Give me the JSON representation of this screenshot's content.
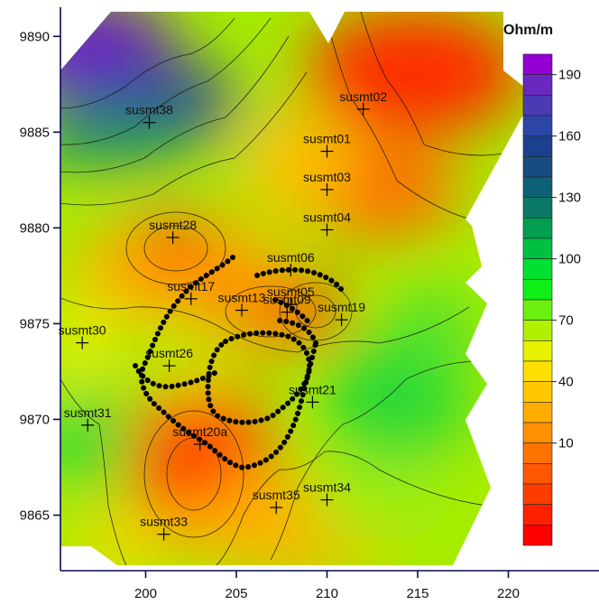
{
  "chart_data": {
    "type": "contour-map",
    "x_ticks": [
      200,
      205,
      210,
      215,
      220
    ],
    "y_ticks": [
      9890,
      9885,
      9880,
      9875,
      9870,
      9865
    ],
    "xlim": [
      195.3,
      225
    ],
    "ylim": [
      9862.1,
      9891.9
    ],
    "stations": [
      {
        "name": "susmt38",
        "x": 200.2,
        "y": 9885.5
      },
      {
        "name": "susmt02",
        "x": 212.0,
        "y": 9886.2
      },
      {
        "name": "susmt01",
        "x": 210.0,
        "y": 9884.0
      },
      {
        "name": "susmt03",
        "x": 210.0,
        "y": 9882.0
      },
      {
        "name": "susmt04",
        "x": 210.0,
        "y": 9879.9
      },
      {
        "name": "susmt28",
        "x": 201.5,
        "y": 9879.5
      },
      {
        "name": "susmt06",
        "x": 208.0,
        "y": 9877.8
      },
      {
        "name": "susmt17",
        "x": 202.5,
        "y": 9876.3
      },
      {
        "name": "susmt05",
        "x": 208.0,
        "y": 9876.0
      },
      {
        "name": "susmt13",
        "x": 205.3,
        "y": 9875.7
      },
      {
        "name": "susmt09",
        "x": 207.8,
        "y": 9875.6
      },
      {
        "name": "susmt19",
        "x": 210.8,
        "y": 9875.2
      },
      {
        "name": "susmt30",
        "x": 196.5,
        "y": 9874.0
      },
      {
        "name": "susmt26",
        "x": 201.3,
        "y": 9872.8
      },
      {
        "name": "susmt21",
        "x": 209.2,
        "y": 9870.9
      },
      {
        "name": "susmt31",
        "x": 196.8,
        "y": 9869.7
      },
      {
        "name": "susmt20a",
        "x": 203.0,
        "y": 9868.7
      },
      {
        "name": "susmt34",
        "x": 210.0,
        "y": 9865.8
      },
      {
        "name": "susmt35",
        "x": 207.2,
        "y": 9865.4
      },
      {
        "name": "susmt33",
        "x": 201.0,
        "y": 9864.0
      }
    ],
    "legend": {
      "title": "Ohm/m",
      "tick_labels": [
        "190",
        "160",
        "130",
        "100",
        "70",
        "40",
        "10"
      ],
      "colors": [
        "#9400d3",
        "#6a28c0",
        "#4a3ab4",
        "#2d45a6",
        "#1b4090",
        "#164c80",
        "#0d6076",
        "#0a7a66",
        "#00a050",
        "#00c040",
        "#00e030",
        "#10f018",
        "#6cf010",
        "#b0f000",
        "#e8f200",
        "#ffe000",
        "#ffc800",
        "#ffac00",
        "#ff9000",
        "#ff7400",
        "#ff5800",
        "#ff3c00",
        "#ff2000",
        "#ff0000"
      ]
    }
  }
}
